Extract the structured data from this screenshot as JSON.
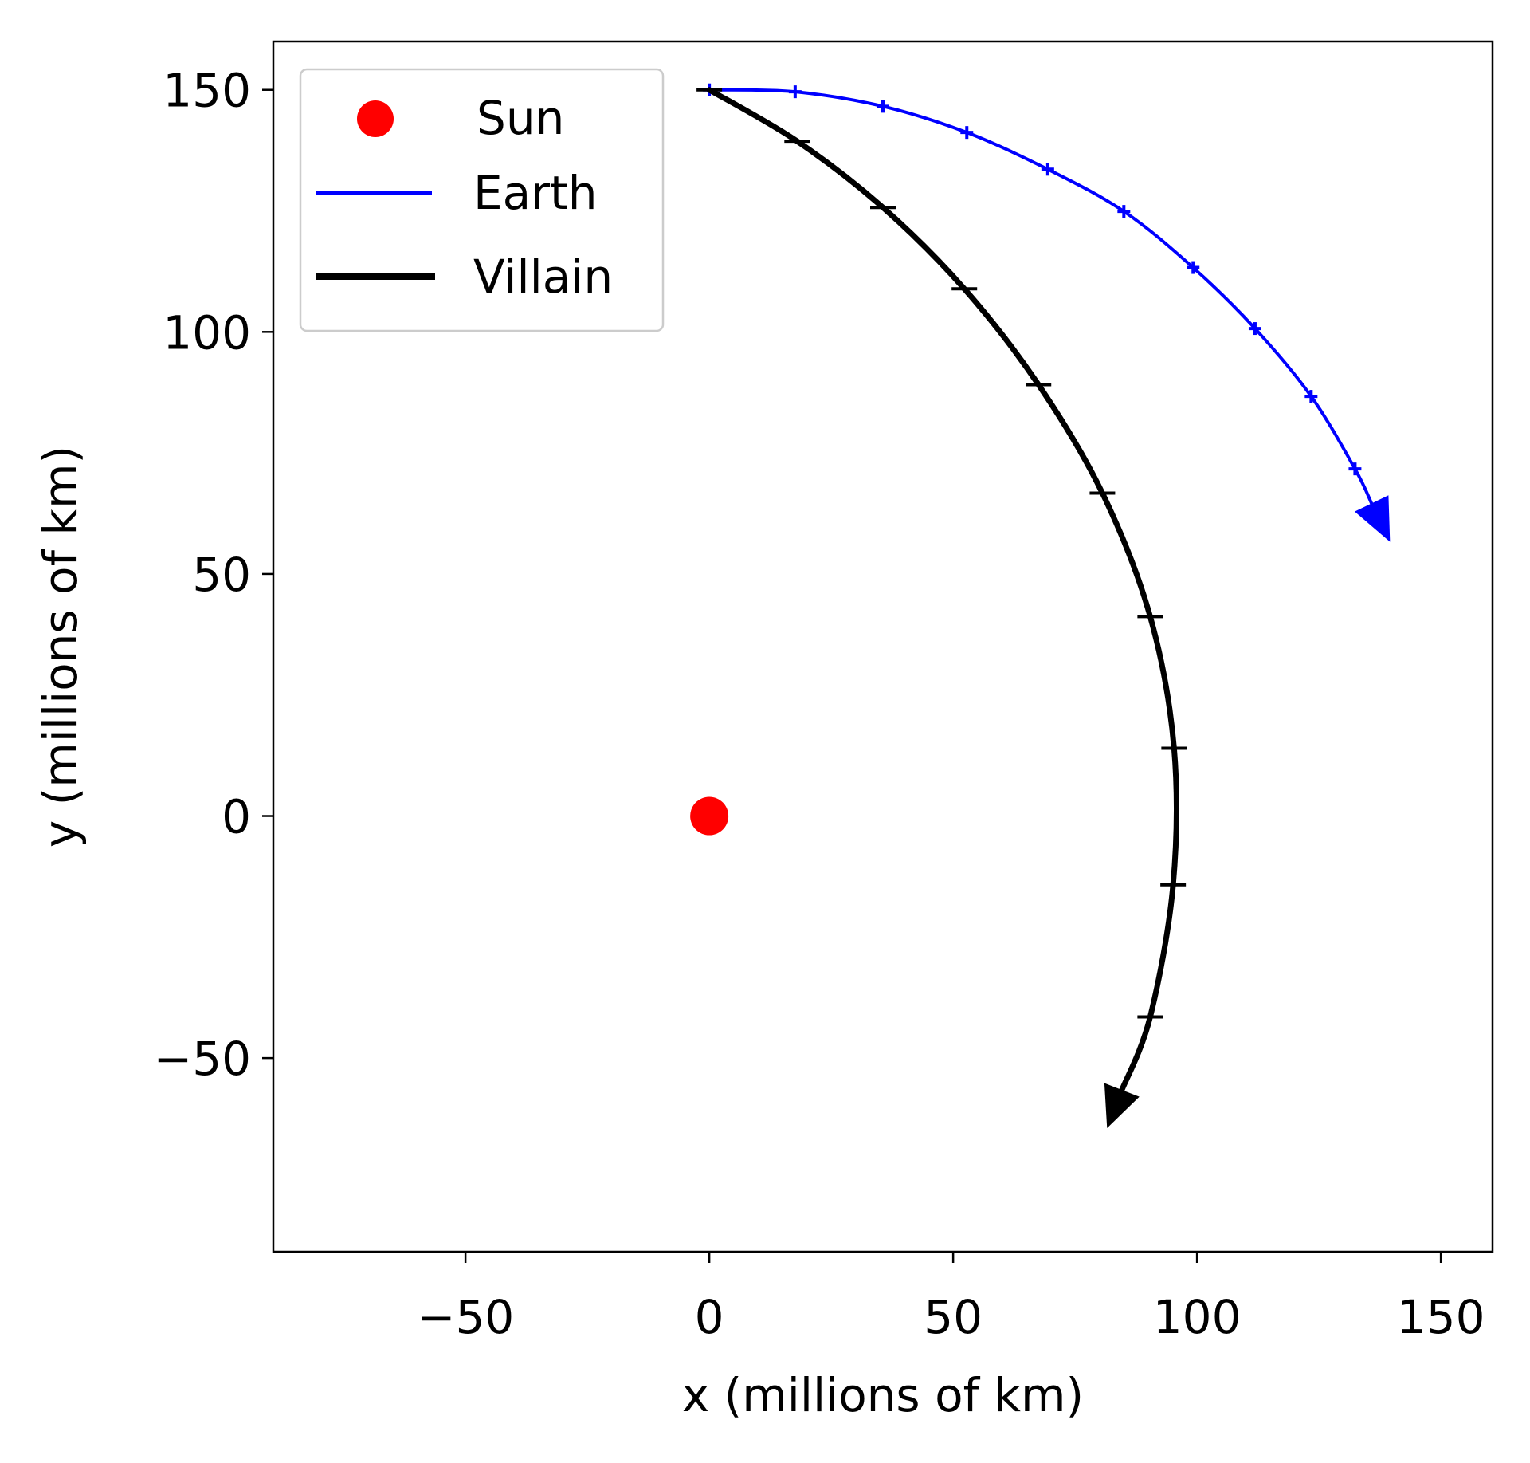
{
  "chart_data": {
    "type": "line",
    "title": "",
    "xlabel": "x (millions of km)",
    "ylabel": "y (millions of km)",
    "xlim": [
      -89.4,
      160.6
    ],
    "ylim": [
      -90,
      160
    ],
    "grid": false,
    "legend_position": "upper left",
    "x_ticks": [
      -50,
      0,
      50,
      100,
      150
    ],
    "x_tick_labels": [
      "−50",
      "0",
      "50",
      "100",
      "150"
    ],
    "y_ticks": [
      -50,
      0,
      50,
      100,
      150
    ],
    "y_tick_labels": [
      "−50",
      "0",
      "50",
      "100",
      "150"
    ],
    "series": [
      {
        "name": "Sun",
        "kind": "marker",
        "color": "#ff0000",
        "points": [
          [
            0,
            0
          ]
        ]
      },
      {
        "name": "Earth",
        "kind": "trajectory",
        "color": "#0000ff",
        "line_width": 1.5,
        "arrow": true,
        "points": [
          [
            0,
            150
          ],
          [
            17.6,
            149.6
          ],
          [
            35.6,
            146.6
          ],
          [
            52.8,
            141.2
          ],
          [
            69.4,
            133.6
          ],
          [
            85.0,
            124.9
          ],
          [
            99.2,
            113.3
          ],
          [
            111.9,
            100.7
          ],
          [
            123.4,
            86.7
          ],
          [
            132.4,
            71.7
          ]
        ],
        "arrow_tip": [
          139.4,
          57.0
        ]
      },
      {
        "name": "Villain",
        "kind": "trajectory",
        "color": "#000000",
        "line_width": 3,
        "arrow": true,
        "points": [
          [
            0,
            150
          ],
          [
            18.0,
            139.4
          ],
          [
            35.6,
            125.7
          ],
          [
            52.3,
            108.9
          ],
          [
            67.5,
            89.1
          ],
          [
            80.6,
            66.7
          ],
          [
            90.4,
            41.2
          ],
          [
            95.3,
            14.0
          ],
          [
            95.1,
            -14.2
          ],
          [
            90.4,
            -41.5
          ]
        ],
        "arrow_tip": [
          81.7,
          -64.1
        ]
      }
    ],
    "legend": [
      {
        "label": "Sun",
        "marker": "dot",
        "color": "#ff0000"
      },
      {
        "label": "Earth",
        "marker": "line",
        "color": "#0000ff"
      },
      {
        "label": "Villain",
        "marker": "thick-line",
        "color": "#000000"
      }
    ]
  }
}
